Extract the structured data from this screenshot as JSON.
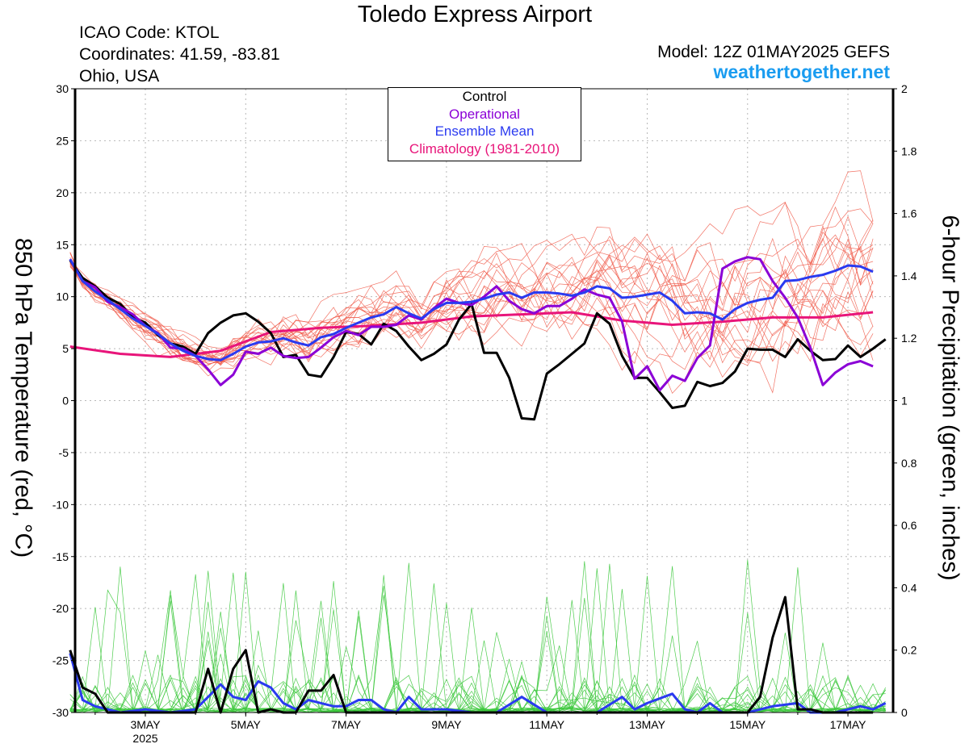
{
  "header": {
    "title": "Toledo Express Airport",
    "icao": "ICAO Code: KTOL",
    "coords": "Coordinates: 41.59, -83.81",
    "region": "Ohio, USA",
    "model": "Model: 12Z 01MAY2025 GEFS",
    "site": "weathertogether.net"
  },
  "axes": {
    "left_label": "850 hPa Temperature (red, °C)",
    "right_label": "6-hour Precipitation (green, inches)",
    "left_ticks": [
      "30",
      "25",
      "20",
      "15",
      "10",
      "5",
      "0",
      "-5",
      "-10",
      "-15",
      "-20",
      "-25",
      "-30"
    ],
    "right_ticks": [
      "2",
      "1.8",
      "1.6",
      "1.4",
      "1.2",
      "1",
      "0.8",
      "0.6",
      "0.4",
      "0.2",
      "0"
    ],
    "x_ticks": [
      "3MAY",
      "5MAY",
      "7MAY",
      "9MAY",
      "11MAY",
      "13MAY",
      "15MAY",
      "17MAY"
    ],
    "x_year": "2025"
  },
  "legend": {
    "control": "Control",
    "operational": "Operational",
    "mean": "Ensemble Mean",
    "climo": "Climatology (1981-2010)"
  },
  "colors": {
    "control": "#000000",
    "operational": "#8b00d6",
    "mean": "#2a3af0",
    "climo": "#e8157a",
    "members_temp": "#f05a4a",
    "members_precip": "#3cc83c",
    "site": "#1a9cf0"
  },
  "chart_data": {
    "type": "line",
    "title": "Toledo Express Airport",
    "x_unit": "days since 01MAY2025 12Z (6-hourly)",
    "xlim": [
      0.1,
      16.4
    ],
    "ylim_left": [
      -30,
      30
    ],
    "ylim_right": [
      0,
      2
    ],
    "x_ticks_days": [
      1.5,
      3.5,
      5.5,
      7.5,
      9.5,
      11.5,
      13.5,
      15.5
    ],
    "grid": true,
    "legend_position": "top-center",
    "temperature": {
      "climatology": [
        [
          0,
          5.2
        ],
        [
          1,
          4.5
        ],
        [
          2,
          4.2
        ],
        [
          3,
          4.8
        ],
        [
          4,
          6.6
        ],
        [
          5,
          7
        ],
        [
          6,
          7.2
        ],
        [
          7,
          7.5
        ],
        [
          8,
          8.1
        ],
        [
          9,
          8.3
        ],
        [
          10,
          8.5
        ],
        [
          11,
          7.7
        ],
        [
          12,
          7.3
        ],
        [
          13,
          7.6
        ],
        [
          14,
          8
        ],
        [
          15,
          8
        ],
        [
          16,
          8.5
        ]
      ],
      "control": [
        [
          0,
          13.5
        ],
        [
          0.25,
          11.8
        ],
        [
          0.5,
          11
        ],
        [
          0.75,
          9.9
        ],
        [
          1,
          9.3
        ],
        [
          1.25,
          8
        ],
        [
          1.5,
          7.5
        ],
        [
          1.75,
          6.3
        ],
        [
          2,
          5.5
        ],
        [
          2.25,
          5.2
        ],
        [
          2.5,
          4.5
        ],
        [
          2.75,
          6.5
        ],
        [
          3,
          7.5
        ],
        [
          3.25,
          8.2
        ],
        [
          3.5,
          8.4
        ],
        [
          3.75,
          7.6
        ],
        [
          4,
          6.5
        ],
        [
          4.25,
          4.2
        ],
        [
          4.5,
          4.4
        ],
        [
          4.75,
          2.5
        ],
        [
          5,
          2.3
        ],
        [
          5.25,
          4.2
        ],
        [
          5.5,
          6.6
        ],
        [
          5.75,
          6.4
        ],
        [
          6,
          5.4
        ],
        [
          6.25,
          7.4
        ],
        [
          6.5,
          6.7
        ],
        [
          6.75,
          5.2
        ],
        [
          7,
          3.9
        ],
        [
          7.25,
          4.5
        ],
        [
          7.5,
          5.4
        ],
        [
          7.75,
          7.8
        ],
        [
          8,
          9.3
        ],
        [
          8.25,
          4.6
        ],
        [
          8.5,
          4.6
        ],
        [
          8.75,
          2.2
        ],
        [
          9,
          -1.7
        ],
        [
          9.25,
          -1.8
        ],
        [
          9.5,
          2.6
        ],
        [
          9.75,
          3.5
        ],
        [
          10,
          4.5
        ],
        [
          10.25,
          5.5
        ],
        [
          10.5,
          8.4
        ],
        [
          10.75,
          7.4
        ],
        [
          11,
          4.3
        ],
        [
          11.25,
          2.2
        ],
        [
          11.5,
          2.2
        ],
        [
          11.75,
          0.8
        ],
        [
          12,
          -0.7
        ],
        [
          12.25,
          -0.5
        ],
        [
          12.5,
          1.8
        ],
        [
          12.75,
          1.4
        ],
        [
          13,
          1.7
        ],
        [
          13.25,
          2.8
        ],
        [
          13.5,
          5
        ],
        [
          13.75,
          4.9
        ],
        [
          14,
          4.9
        ],
        [
          14.25,
          4.2
        ],
        [
          14.5,
          5.9
        ],
        [
          14.75,
          4.8
        ],
        [
          15,
          3.9
        ],
        [
          15.25,
          4
        ],
        [
          15.5,
          5.3
        ],
        [
          15.75,
          4.2
        ],
        [
          16,
          5
        ],
        [
          16.25,
          5.9
        ]
      ],
      "operational": [
        [
          0,
          13.6
        ],
        [
          0.25,
          11.5
        ],
        [
          0.5,
          10.9
        ],
        [
          0.75,
          9.5
        ],
        [
          1,
          9
        ],
        [
          1.25,
          8.3
        ],
        [
          1.5,
          7.2
        ],
        [
          1.75,
          6.5
        ],
        [
          2,
          5.1
        ],
        [
          2.25,
          5
        ],
        [
          2.5,
          4.3
        ],
        [
          2.75,
          3
        ],
        [
          3,
          1.5
        ],
        [
          3.25,
          2.5
        ],
        [
          3.5,
          4.7
        ],
        [
          3.75,
          4.5
        ],
        [
          4,
          5.1
        ],
        [
          4.25,
          4.3
        ],
        [
          4.5,
          4.1
        ],
        [
          4.75,
          4.2
        ],
        [
          5,
          5.1
        ],
        [
          5.25,
          6.1
        ],
        [
          5.5,
          6.7
        ],
        [
          5.75,
          6.3
        ],
        [
          6,
          7.1
        ],
        [
          6.25,
          7.1
        ],
        [
          6.5,
          7.3
        ],
        [
          6.75,
          8.2
        ],
        [
          7,
          7.8
        ],
        [
          7.25,
          8.9
        ],
        [
          7.5,
          9.8
        ],
        [
          7.75,
          9.4
        ],
        [
          8,
          9.2
        ],
        [
          8.25,
          10
        ],
        [
          8.5,
          11
        ],
        [
          8.75,
          9.6
        ],
        [
          9,
          8.8
        ],
        [
          9.25,
          8.4
        ],
        [
          9.5,
          9.1
        ],
        [
          9.75,
          9.1
        ],
        [
          10,
          9.8
        ],
        [
          10.25,
          10.7
        ],
        [
          10.5,
          10.2
        ],
        [
          10.75,
          9.9
        ],
        [
          11,
          7.6
        ],
        [
          11.25,
          2.1
        ],
        [
          11.5,
          3.3
        ],
        [
          11.75,
          1
        ],
        [
          12,
          2.4
        ],
        [
          12.25,
          1.9
        ],
        [
          12.5,
          4.1
        ],
        [
          12.75,
          5.3
        ],
        [
          13,
          12.7
        ],
        [
          13.25,
          13.4
        ],
        [
          13.5,
          13.8
        ],
        [
          13.75,
          13.6
        ],
        [
          14,
          11.5
        ],
        [
          14.25,
          9.9
        ],
        [
          14.5,
          8
        ],
        [
          14.75,
          5.1
        ],
        [
          15,
          1.5
        ],
        [
          15.25,
          2.7
        ],
        [
          15.5,
          3.5
        ],
        [
          15.75,
          3.8
        ],
        [
          16,
          3.3
        ]
      ],
      "ensemble_mean": [
        [
          0,
          13.6
        ],
        [
          0.25,
          11.5
        ],
        [
          0.5,
          10.5
        ],
        [
          0.75,
          9.7
        ],
        [
          1,
          8.8
        ],
        [
          1.25,
          7.9
        ],
        [
          1.5,
          7.2
        ],
        [
          1.75,
          6.4
        ],
        [
          2,
          5.5
        ],
        [
          2.25,
          4.8
        ],
        [
          2.5,
          4.3
        ],
        [
          2.75,
          4
        ],
        [
          3,
          3.9
        ],
        [
          3.25,
          4.5
        ],
        [
          3.5,
          5.2
        ],
        [
          3.75,
          5.6
        ],
        [
          4,
          5.7
        ],
        [
          4.25,
          6
        ],
        [
          4.5,
          5.6
        ],
        [
          4.75,
          5.3
        ],
        [
          5,
          6.1
        ],
        [
          5.25,
          6.4
        ],
        [
          5.5,
          7
        ],
        [
          5.75,
          7.5
        ],
        [
          6,
          8
        ],
        [
          6.25,
          8.3
        ],
        [
          6.5,
          9
        ],
        [
          6.75,
          8.4
        ],
        [
          7,
          7.9
        ],
        [
          7.25,
          8.8
        ],
        [
          7.5,
          9.4
        ],
        [
          7.75,
          9.4
        ],
        [
          8,
          9.5
        ],
        [
          8.25,
          9.8
        ],
        [
          8.5,
          10.2
        ],
        [
          8.75,
          10.4
        ],
        [
          9,
          9.9
        ],
        [
          9.25,
          10.4
        ],
        [
          9.5,
          10.4
        ],
        [
          9.75,
          10.3
        ],
        [
          10,
          10.1
        ],
        [
          10.25,
          10.4
        ],
        [
          10.5,
          11
        ],
        [
          10.75,
          10.8
        ],
        [
          11,
          9.9
        ],
        [
          11.25,
          10
        ],
        [
          11.5,
          10.2
        ],
        [
          11.75,
          10.4
        ],
        [
          12,
          9.6
        ],
        [
          12.25,
          8.4
        ],
        [
          12.5,
          8.5
        ],
        [
          12.75,
          8.4
        ],
        [
          13,
          7.8
        ],
        [
          13.25,
          8.8
        ],
        [
          13.5,
          9.4
        ],
        [
          13.75,
          9.7
        ],
        [
          14,
          9.9
        ],
        [
          14.25,
          11.5
        ],
        [
          14.5,
          11.6
        ],
        [
          14.75,
          11.9
        ],
        [
          15,
          12.1
        ],
        [
          15.25,
          12.5
        ],
        [
          15.5,
          13
        ],
        [
          15.75,
          12.9
        ],
        [
          16,
          12.4
        ]
      ],
      "members_count": 20
    },
    "precipitation": {
      "ensemble_mean": [
        [
          0,
          0.19
        ],
        [
          0.25,
          0.04
        ],
        [
          0.5,
          0.02
        ],
        [
          1,
          0
        ],
        [
          1.5,
          0.01
        ],
        [
          2,
          0
        ],
        [
          2.5,
          0.01
        ],
        [
          3,
          0.09
        ],
        [
          3.25,
          0.05
        ],
        [
          3.5,
          0.04
        ],
        [
          3.75,
          0.1
        ],
        [
          4,
          0.08
        ],
        [
          4.25,
          0.03
        ],
        [
          4.5,
          0.01
        ],
        [
          4.75,
          0.04
        ],
        [
          5,
          0.03
        ],
        [
          5.25,
          0.02
        ],
        [
          5.5,
          0.02
        ],
        [
          5.75,
          0.04
        ],
        [
          6,
          0.04
        ],
        [
          6.25,
          0.01
        ],
        [
          6.5,
          0
        ],
        [
          6.75,
          0.05
        ],
        [
          7,
          0.01
        ],
        [
          7.5,
          0.01
        ],
        [
          8,
          0
        ],
        [
          8.5,
          0
        ],
        [
          9,
          0.05
        ],
        [
          9.5,
          0
        ],
        [
          10,
          0
        ],
        [
          10.5,
          0
        ],
        [
          11,
          0.05
        ],
        [
          11.25,
          0.01
        ],
        [
          11.5,
          0.03
        ],
        [
          12,
          0.06
        ],
        [
          12.25,
          0.01
        ],
        [
          12.5,
          0
        ],
        [
          12.75,
          0.03
        ],
        [
          13,
          0
        ],
        [
          13.5,
          0
        ],
        [
          14,
          0.02
        ],
        [
          14.5,
          0.03
        ],
        [
          14.75,
          0
        ],
        [
          15.25,
          0
        ],
        [
          15.75,
          0.02
        ],
        [
          16,
          0.01
        ],
        [
          16.25,
          0.03
        ]
      ],
      "control": [
        [
          0,
          0.2
        ],
        [
          0.25,
          0.08
        ],
        [
          0.5,
          0.06
        ],
        [
          0.75,
          0
        ],
        [
          1,
          0
        ],
        [
          1.5,
          0
        ],
        [
          2,
          0
        ],
        [
          2.5,
          0
        ],
        [
          2.75,
          0.14
        ],
        [
          3,
          0
        ],
        [
          3.25,
          0.14
        ],
        [
          3.5,
          0.2
        ],
        [
          3.75,
          0
        ],
        [
          4,
          0.01
        ],
        [
          4.25,
          0
        ],
        [
          4.5,
          0
        ],
        [
          4.75,
          0.07
        ],
        [
          5,
          0.07
        ],
        [
          5.25,
          0.12
        ],
        [
          5.5,
          0
        ],
        [
          6,
          0
        ],
        [
          6.5,
          0
        ],
        [
          7,
          0
        ],
        [
          7.5,
          0
        ],
        [
          8,
          0
        ],
        [
          8.5,
          0
        ],
        [
          9,
          0
        ],
        [
          9.5,
          0
        ],
        [
          10,
          0
        ],
        [
          10.5,
          0
        ],
        [
          11,
          0
        ],
        [
          11.5,
          0
        ],
        [
          12,
          0
        ],
        [
          12.5,
          0
        ],
        [
          13,
          0
        ],
        [
          13.5,
          0
        ],
        [
          13.75,
          0.05
        ],
        [
          14,
          0.24
        ],
        [
          14.25,
          0.37
        ],
        [
          14.5,
          0.01
        ],
        [
          14.75,
          0.01
        ],
        [
          15,
          0
        ],
        [
          15.5,
          0
        ],
        [
          16,
          0
        ]
      ],
      "members_count": 20
    }
  }
}
